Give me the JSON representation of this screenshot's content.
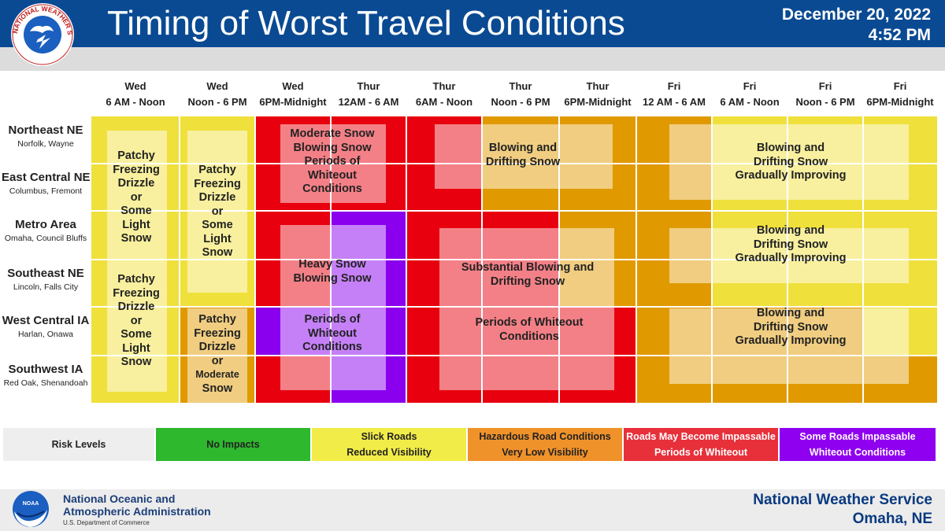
{
  "header": {
    "title": "Timing of Worst Travel Conditions",
    "date": "December 20, 2022",
    "time": "4:52 PM"
  },
  "logo": {
    "text": "NATIONAL WEATHER SERVICE"
  },
  "columns": [
    {
      "day": "Wed",
      "time": "6 AM - Noon"
    },
    {
      "day": "Wed",
      "time": "Noon - 6 PM"
    },
    {
      "day": "Wed",
      "time": "6PM-Midnight"
    },
    {
      "day": "Thur",
      "time": "12AM - 6 AM"
    },
    {
      "day": "Thur",
      "time": "6AM - Noon"
    },
    {
      "day": "Thur",
      "time": "Noon - 6 PM"
    },
    {
      "day": "Thur",
      "time": "6PM-Midnight"
    },
    {
      "day": "Fri",
      "time": "12 AM - 6 AM"
    },
    {
      "day": "Fri",
      "time": "6 AM - Noon"
    },
    {
      "day": "Fri",
      "time": "Noon - 6 PM"
    },
    {
      "day": "Fri",
      "time": "6PM-Midnight"
    }
  ],
  "rows": [
    {
      "name": "Northeast NE",
      "sub": "Norfolk, Wayne"
    },
    {
      "name": "East Central NE",
      "sub": "Columbus, Fremont"
    },
    {
      "name": "Metro Area",
      "sub": "Omaha, Council Bluffs"
    },
    {
      "name": "Southeast NE",
      "sub": "Lincoln, Falls City"
    },
    {
      "name": "West Central IA",
      "sub": "Harlan, Onawa"
    },
    {
      "name": "Southwest IA",
      "sub": "Red Oak, Shenandoah"
    }
  ],
  "colors": {
    "yellow": "#f0e03c",
    "orange": "#e09a00",
    "red": "#e8000e",
    "purple": "#8a00ee",
    "green": "#2eb82e",
    "legend_yellow": "#f2ec48",
    "legend_orange": "#f0922a",
    "legend_red": "#e8303a",
    "legend_purple": "#8f00f0",
    "legend_gray": "#eeeeee"
  },
  "cells": [
    [
      "yellow",
      "yellow",
      "red",
      "red",
      "red",
      "orange",
      "orange",
      "orange",
      "yellow",
      "yellow",
      "yellow"
    ],
    [
      "yellow",
      "yellow",
      "red",
      "red",
      "red",
      "orange",
      "orange",
      "orange",
      "yellow",
      "yellow",
      "yellow"
    ],
    [
      "yellow",
      "yellow",
      "red",
      "purple",
      "red",
      "red",
      "orange",
      "orange",
      "yellow",
      "yellow",
      "yellow"
    ],
    [
      "yellow",
      "yellow",
      "red",
      "purple",
      "red",
      "red",
      "orange",
      "orange",
      "yellow",
      "yellow",
      "yellow"
    ],
    [
      "yellow",
      "orange",
      "purple",
      "purple",
      "red",
      "red",
      "red",
      "orange",
      "orange",
      "orange",
      "yellow"
    ],
    [
      "yellow",
      "orange",
      "red",
      "purple",
      "red",
      "red",
      "red",
      "orange",
      "orange",
      "orange",
      "orange"
    ]
  ],
  "labels": {
    "l1": "Patchy\nFreezing\nDrizzle\nor\nSome\nLight\nSnow",
    "l2": "Patchy\nFreezing\nDrizzle\nor\nSome\nLight\nSnow",
    "l3": "Patchy\nFreezing\nDrizzle\nor\nSome\nLight\nSnow",
    "l4a": "Patchy\nFreezing\nDrizzle",
    "l4b": "or",
    "l4c": "Moderate",
    "l4d": "Snow",
    "l5": "Moderate Snow\nBlowing Snow\nPeriods of\nWhiteout\nConditions",
    "l6": "Blowing and\nDrifting Snow",
    "l7": "Blowing and\nDrifting Snow\nGradually Improving",
    "l8": "Heavy Snow\nBlowing Snow",
    "l9": "Substantial Blowing and\nDrifting Snow",
    "l10": "Blowing and\nDrifting Snow\nGradually Improving",
    "l11": "Periods of\nWhiteout\nConditions",
    "l12": "Periods of Whiteout\nConditions",
    "l13": "Blowing and\nDrifting Snow\nGradually Improving"
  },
  "legend": {
    "title": "Risk Levels",
    "items": [
      {
        "line1": "No Impacts",
        "line2": ""
      },
      {
        "line1": "Slick Roads",
        "line2": "Reduced Visibility"
      },
      {
        "line1": "Hazardous Road Conditions",
        "line2": "Very Low Visibility"
      },
      {
        "line1": "Roads May Become Impassable",
        "line2": "Periods of Whiteout"
      },
      {
        "line1": "Some Roads Impassable",
        "line2": "Whiteout Conditions"
      }
    ]
  },
  "footer": {
    "noaa_line1": "National Oceanic and",
    "noaa_line2": "Atmospheric Administration",
    "noaa_line3": "U.S. Department of Commerce",
    "noaa_logo_text": "NOAA",
    "nws_line1": "National Weather Service",
    "nws_line2": "Omaha, NE"
  }
}
